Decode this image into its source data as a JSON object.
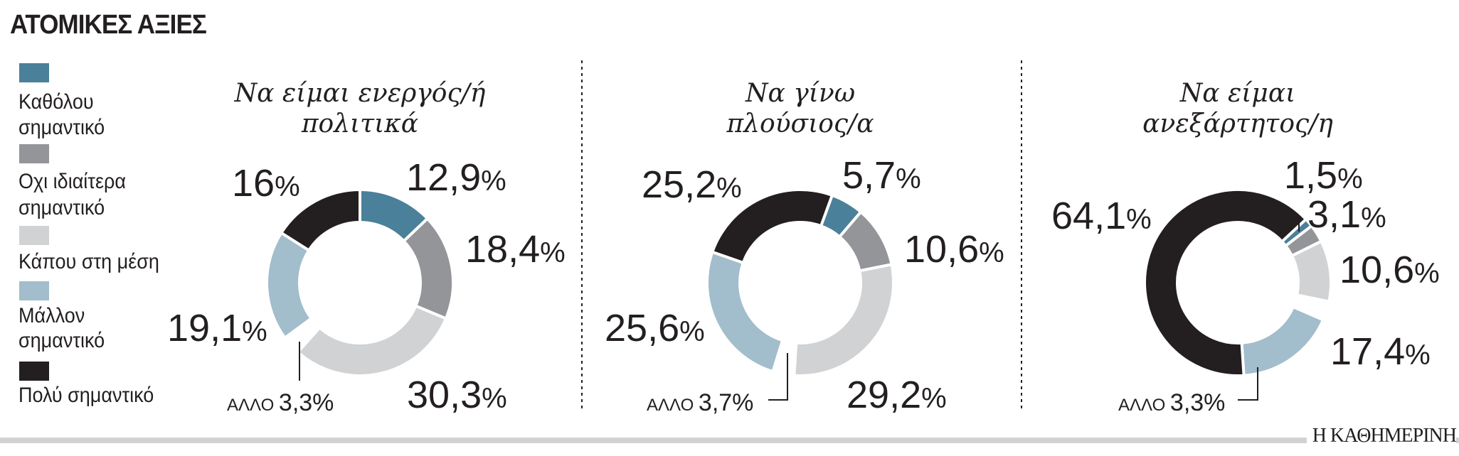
{
  "title": "ΑΤΟΜΙΚΕΣ ΑΞΙΕΣ",
  "brand": "Η ΚΑΘΗΜΕΡΙΝΗ",
  "legend": [
    {
      "lines": [
        "Καθόλου",
        "σημαντικό"
      ],
      "color": "#4a8099"
    },
    {
      "lines": [
        "Οχι ιδιαίτερα",
        "σημαντικό"
      ],
      "color": "#939598"
    },
    {
      "lines": [
        "Κάπου στη μέση"
      ],
      "color": "#d1d2d4"
    },
    {
      "lines": [
        "Μάλλον",
        "σημαντικό"
      ],
      "color": "#a2bdcb"
    },
    {
      "lines": [
        "Πολύ σημαντικό"
      ],
      "color": "#231f20"
    }
  ],
  "other_label": "ΑΛΛΟ",
  "chart_data": [
    {
      "type": "pie",
      "donut": true,
      "title": [
        "Να είμαι ενεργός/ή",
        "πολιτικά"
      ],
      "categories": [
        "Καθόλου σημαντικό",
        "Οχι ιδιαίτερα σημαντικό",
        "Κάπου στη μέση",
        "ΑΛΛΟ",
        "Μάλλον σημαντικό",
        "Πολύ σημαντικό"
      ],
      "values": [
        12.9,
        18.4,
        30.3,
        3.3,
        19.1,
        16
      ],
      "labels": [
        "12,9",
        "18,4",
        "30,3",
        "3,3",
        "19,1",
        "16"
      ]
    },
    {
      "type": "pie",
      "donut": true,
      "title": [
        "Να γίνω",
        "πλούσιος/α"
      ],
      "categories": [
        "Καθόλου σημαντικό",
        "Οχι ιδιαίτερα σημαντικό",
        "Κάπου στη μέση",
        "ΑΛΛΟ",
        "Μάλλον σημαντικό",
        "Πολύ σημαντικό"
      ],
      "values": [
        5.7,
        10.6,
        29.2,
        3.7,
        25.6,
        25.2
      ],
      "labels": [
        "5,7",
        "10,6",
        "29,2",
        "3,7",
        "25,6",
        "25,2"
      ]
    },
    {
      "type": "pie",
      "donut": true,
      "title": [
        "Να είμαι",
        "ανεξάρτητος/η"
      ],
      "categories": [
        "Καθόλου σημαντικό",
        "Οχι ιδιαίτερα σημαντικό",
        "Κάπου στη μέση",
        "ΑΛΛΟ",
        "Μάλλον σημαντικό",
        "Πολύ σημαντικό"
      ],
      "values": [
        1.5,
        3.1,
        10.6,
        3.3,
        17.4,
        64.1
      ],
      "labels": [
        "1,5",
        "3,1",
        "10,6",
        "3,3",
        "17,4",
        "64,1"
      ]
    }
  ]
}
